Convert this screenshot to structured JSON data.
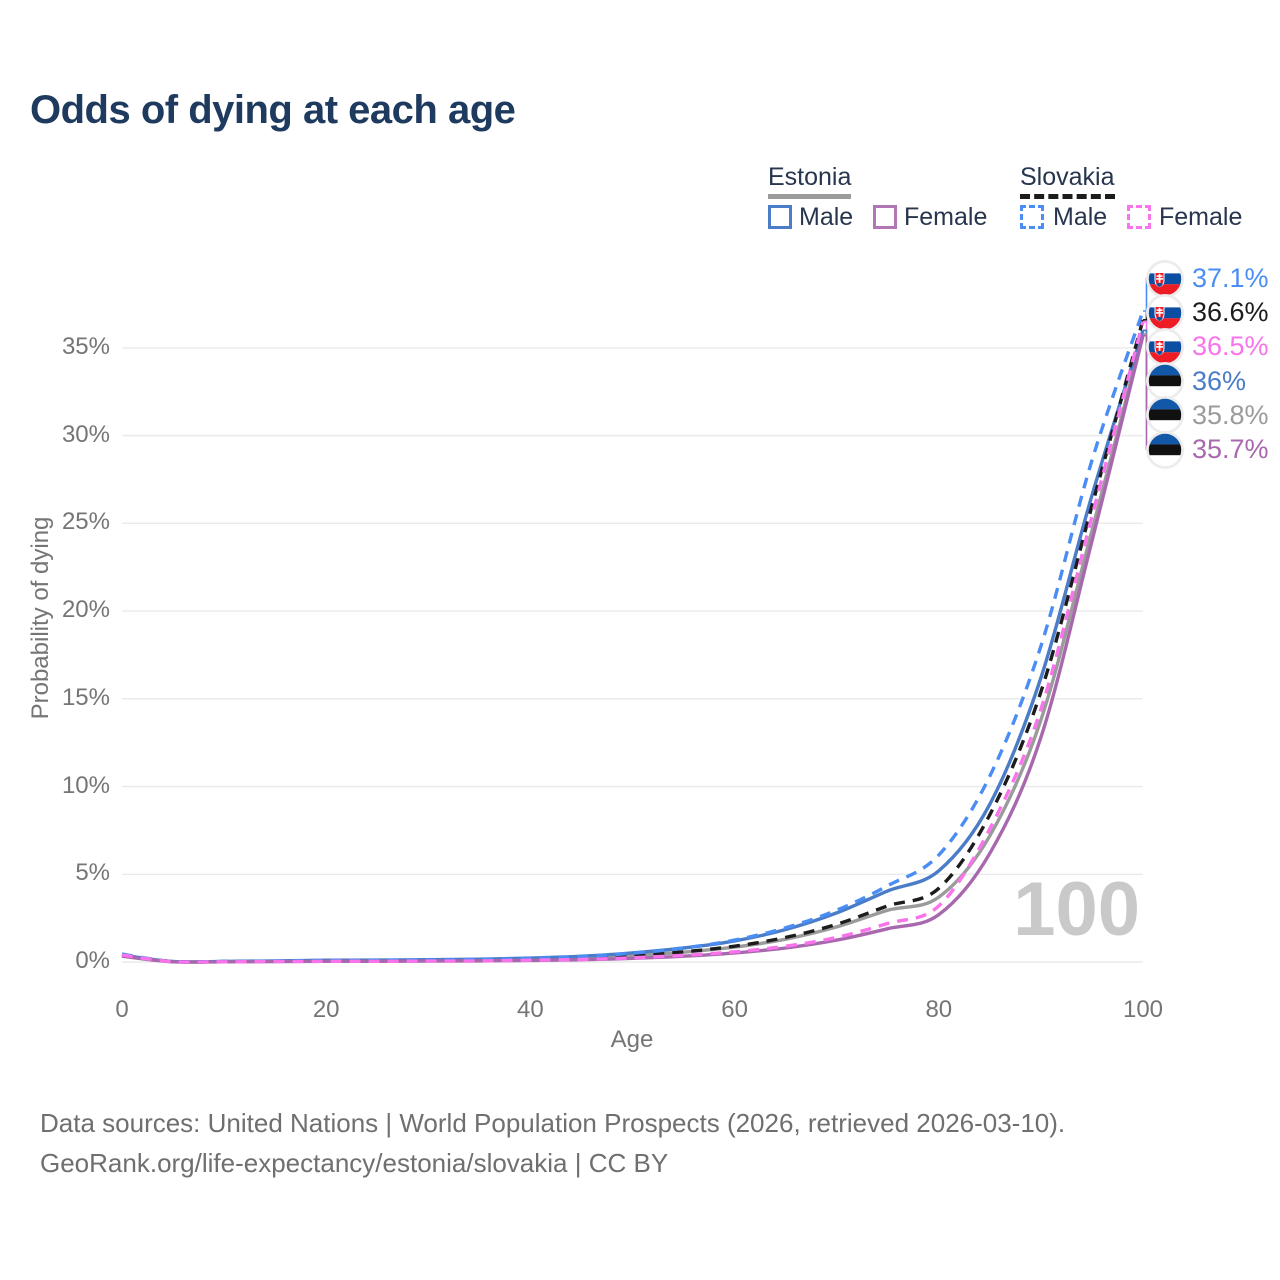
{
  "title": "Odds of dying at each age",
  "legend": {
    "estonia": {
      "label": "Estonia",
      "male": "Male",
      "female": "Female",
      "line_color": "#9b9b9b",
      "male_color": "#4a7cc8",
      "female_color": "#b176b6"
    },
    "slovakia": {
      "label": "Slovakia",
      "male": "Male",
      "female": "Female",
      "line_color": "#1c1c1c",
      "male_color": "#4a8df5",
      "female_color": "#f973eb"
    }
  },
  "chart_data": {
    "type": "line",
    "title": "Odds of dying at each age",
    "xlabel": "Age",
    "ylabel": "Probability of dying",
    "xlim": [
      0,
      100
    ],
    "ylim_pct": [
      0,
      39
    ],
    "x_ticks": [
      "0",
      "20",
      "40",
      "60",
      "80",
      "100"
    ],
    "x_tick_values": [
      0,
      20,
      40,
      60,
      80,
      100
    ],
    "y_ticks": [
      "0%",
      "5%",
      "10%",
      "15%",
      "20%",
      "25%",
      "30%",
      "35%"
    ],
    "y_tick_values_pct": [
      0,
      5,
      10,
      15,
      20,
      25,
      30,
      35
    ],
    "grid": "horizontal-only",
    "age_watermark": "100",
    "ages": [
      0,
      5,
      10,
      15,
      20,
      25,
      30,
      35,
      40,
      45,
      50,
      55,
      60,
      65,
      70,
      75,
      80,
      85,
      90,
      95,
      100
    ],
    "series": [
      {
        "name": "Estonia Total",
        "country": "Estonia",
        "sex": "total",
        "line_style": "solid",
        "color": "#9b9b9b",
        "values_pct": [
          0.36,
          0.02,
          0.02,
          0.04,
          0.07,
          0.08,
          0.09,
          0.11,
          0.16,
          0.23,
          0.36,
          0.56,
          0.85,
          1.3,
          2.0,
          2.95,
          3.7,
          7.2,
          13.8,
          24.6,
          35.8
        ]
      },
      {
        "name": "Estonia Male",
        "country": "Estonia",
        "sex": "male",
        "line_style": "solid",
        "color": "#4a7cc8",
        "values_pct": [
          0.4,
          0.02,
          0.03,
          0.06,
          0.1,
          0.11,
          0.13,
          0.16,
          0.22,
          0.33,
          0.52,
          0.8,
          1.2,
          1.85,
          2.8,
          4.05,
          5.2,
          9.0,
          16.2,
          26.6,
          36.0
        ]
      },
      {
        "name": "Estonia Female",
        "country": "Estonia",
        "sex": "female",
        "line_style": "solid",
        "color": "#a868ad",
        "values_pct": [
          0.33,
          0.01,
          0.01,
          0.02,
          0.04,
          0.04,
          0.05,
          0.06,
          0.09,
          0.13,
          0.21,
          0.33,
          0.52,
          0.8,
          1.25,
          1.9,
          2.7,
          6.2,
          12.8,
          24.0,
          35.7
        ]
      },
      {
        "name": "Slovakia Total",
        "country": "Slovakia",
        "sex": "total",
        "line_style": "dashed",
        "color": "#1c1c1c",
        "values_pct": [
          0.42,
          0.02,
          0.02,
          0.04,
          0.06,
          0.07,
          0.08,
          0.1,
          0.15,
          0.22,
          0.36,
          0.58,
          0.9,
          1.4,
          2.15,
          3.2,
          4.2,
          8.4,
          15.4,
          26.0,
          36.6
        ]
      },
      {
        "name": "Slovakia Male",
        "country": "Slovakia",
        "sex": "male",
        "line_style": "dashed",
        "color": "#4a8df5",
        "values_pct": [
          0.45,
          0.02,
          0.03,
          0.05,
          0.09,
          0.1,
          0.11,
          0.14,
          0.2,
          0.31,
          0.5,
          0.8,
          1.25,
          1.95,
          2.95,
          4.35,
          6.1,
          10.6,
          18.0,
          28.6,
          37.1
        ]
      },
      {
        "name": "Slovakia Female",
        "country": "Slovakia",
        "sex": "female",
        "line_style": "dashed",
        "color": "#f973eb",
        "values_pct": [
          0.4,
          0.01,
          0.01,
          0.02,
          0.04,
          0.04,
          0.05,
          0.06,
          0.1,
          0.15,
          0.24,
          0.38,
          0.58,
          0.9,
          1.4,
          2.2,
          3.2,
          7.6,
          14.4,
          25.4,
          36.5
        ]
      }
    ],
    "end_labels": [
      {
        "text": "37.1%",
        "value_pct": 37.1,
        "color": "#4a8df5",
        "flag": "slovakia"
      },
      {
        "text": "36.6%",
        "value_pct": 36.6,
        "color": "#1c1c1c",
        "flag": "slovakia"
      },
      {
        "text": "36.5%",
        "value_pct": 36.5,
        "color": "#f973eb",
        "flag": "slovakia"
      },
      {
        "text": "36%",
        "value_pct": 36.0,
        "color": "#4a7cc8",
        "flag": "estonia"
      },
      {
        "text": "35.8%",
        "value_pct": 35.8,
        "color": "#9b9b9b",
        "flag": "estonia"
      },
      {
        "text": "35.7%",
        "value_pct": 35.7,
        "color": "#a868ad",
        "flag": "estonia"
      }
    ]
  },
  "footer": {
    "line1": "Data sources: United Nations | World Population Prospects (2026, retrieved 2026-03-10).",
    "line2": "GeoRank.org/life-expectancy/estonia/slovakia | CC BY"
  }
}
